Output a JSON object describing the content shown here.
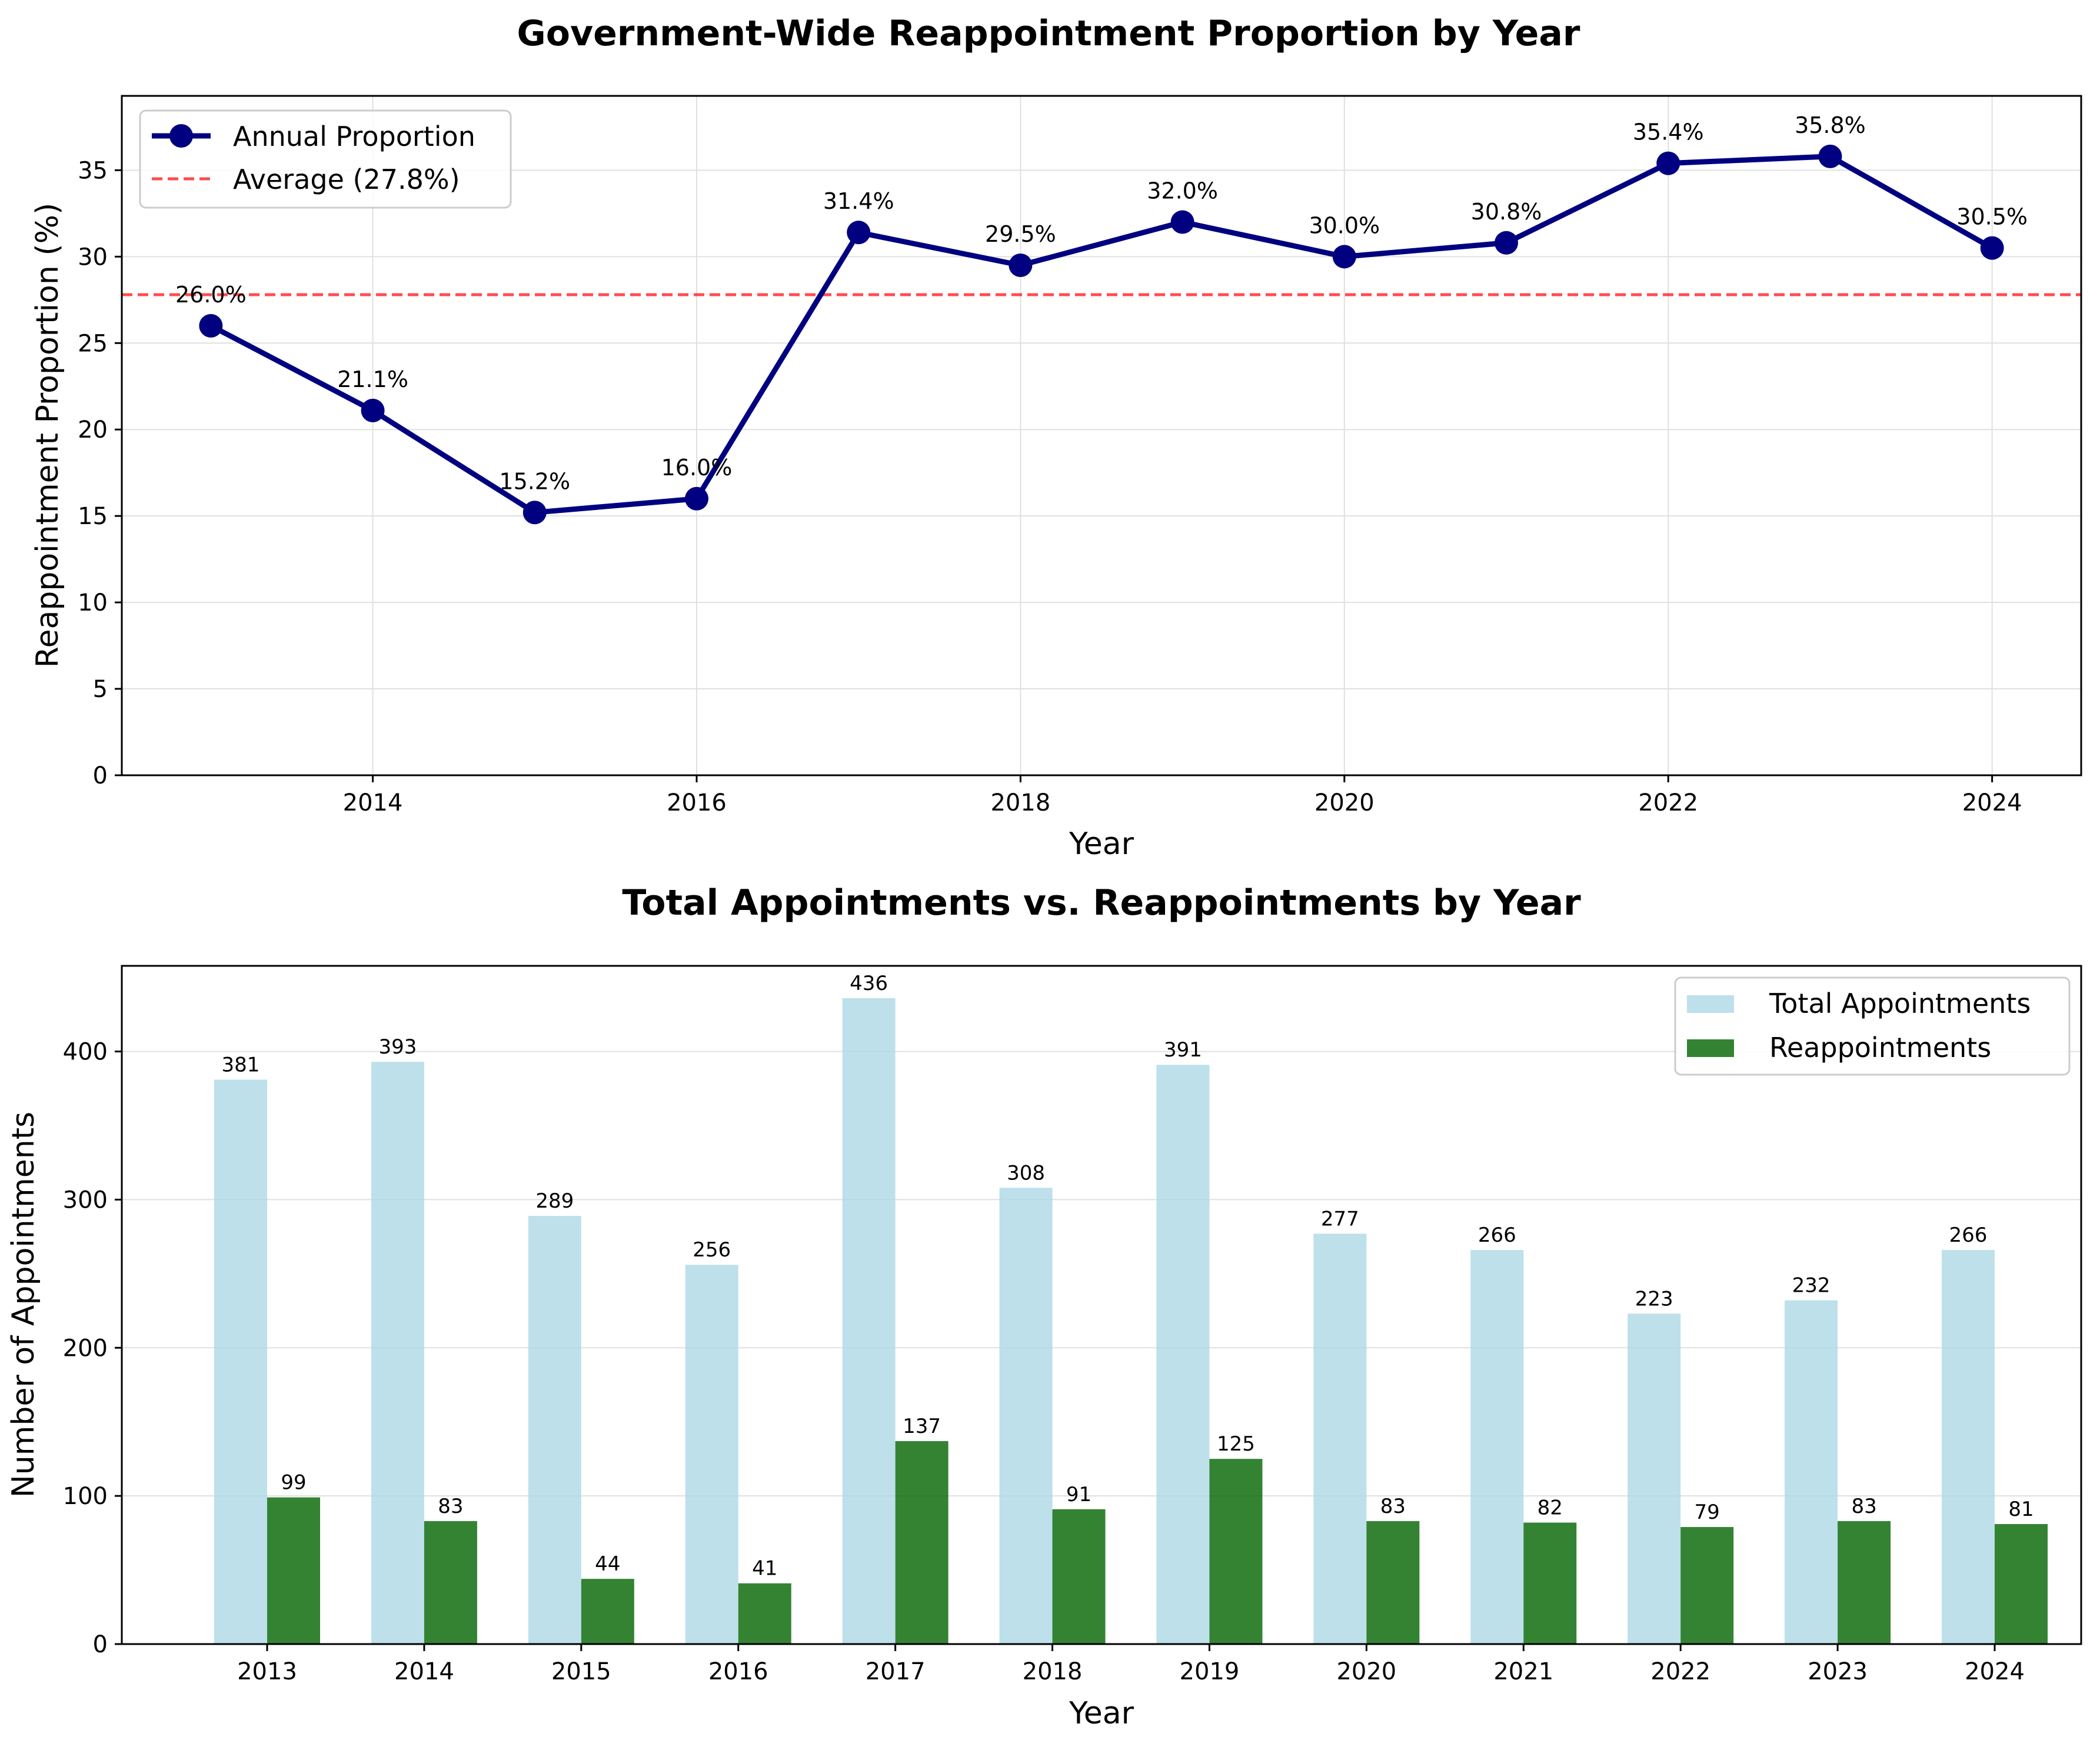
{
  "colors": {
    "line": "#000080",
    "average": "#ff0000",
    "total_bar": "#add8e6",
    "reappointment_bar": "#006400",
    "grid": "#e0e0e0"
  },
  "chart_data": [
    {
      "type": "line",
      "title": "Government-Wide Reappointment Proportion by Year",
      "xlabel": "Year",
      "ylabel": "Reappointment Proportion (%)",
      "x": [
        2013,
        2014,
        2015,
        2016,
        2017,
        2018,
        2019,
        2020,
        2021,
        2022,
        2023,
        2024
      ],
      "xlim": [
        2012.45,
        2024.55
      ],
      "ylim": [
        0,
        39.3
      ],
      "xticks": [
        2014,
        2016,
        2018,
        2020,
        2022,
        2024
      ],
      "yticks": [
        0,
        5,
        10,
        15,
        20,
        25,
        30,
        35
      ],
      "series": [
        {
          "name": "Annual Proportion",
          "values": [
            26.0,
            21.1,
            15.2,
            16.0,
            31.4,
            29.5,
            32.0,
            30.0,
            30.8,
            35.4,
            35.8,
            30.5
          ],
          "labels": [
            "26.0%",
            "21.1%",
            "15.2%",
            "16.0%",
            "31.4%",
            "29.5%",
            "32.0%",
            "30.0%",
            "30.8%",
            "35.4%",
            "35.8%",
            "30.5%"
          ]
        }
      ],
      "reference_line": {
        "name": "Average (27.8%)",
        "value": 27.8,
        "style": "dashed"
      },
      "legend_position": "top-left",
      "grid": true
    },
    {
      "type": "bar",
      "title": "Total Appointments vs. Reappointments by Year",
      "xlabel": "Year",
      "ylabel": "Number of Appointments",
      "categories": [
        "2013",
        "2014",
        "2015",
        "2016",
        "2017",
        "2018",
        "2019",
        "2020",
        "2021",
        "2022",
        "2023",
        "2024"
      ],
      "ylim": [
        0,
        457.8
      ],
      "yticks": [
        0,
        100,
        200,
        300,
        400
      ],
      "series": [
        {
          "name": "Total Appointments",
          "values": [
            381,
            393,
            289,
            256,
            436,
            308,
            391,
            277,
            266,
            223,
            232,
            266
          ]
        },
        {
          "name": "Reappointments",
          "values": [
            99,
            83,
            44,
            41,
            137,
            91,
            125,
            83,
            82,
            79,
            83,
            81
          ]
        }
      ],
      "legend_position": "top-right",
      "grid": true
    }
  ]
}
